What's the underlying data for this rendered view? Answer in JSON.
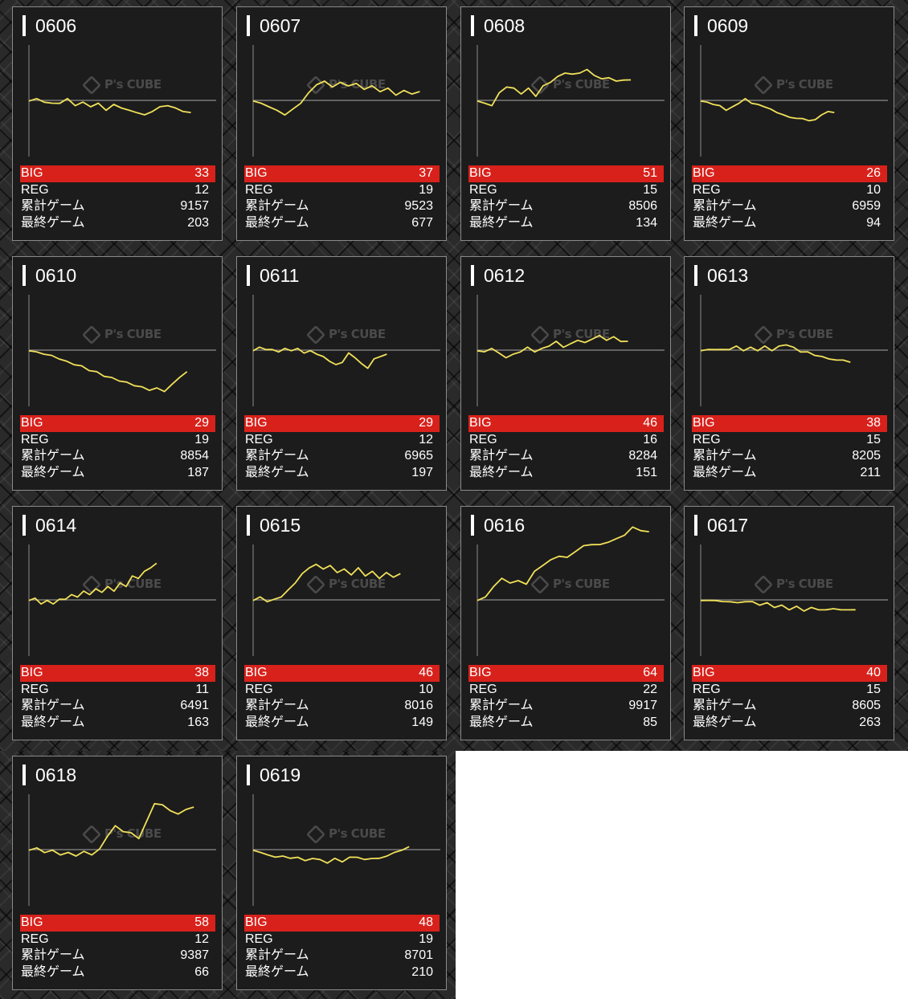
{
  "colors": {
    "card_bg": "#1c1c1c",
    "card_border": "#8a8a8a",
    "big_bar": "#d8211b",
    "graph_line": "#f0e05a",
    "baseline": "#8c8c8c",
    "text": "#ffffff"
  },
  "watermark": {
    "text": "P's CUBE",
    "icon": "cube-logo-icon"
  },
  "labels": {
    "big": "BIG",
    "reg": "REG",
    "total_games": "累計ゲーム",
    "last_games": "最終ゲーム"
  },
  "machines": [
    {
      "id": "0606",
      "big": "33",
      "reg": "12",
      "total_games": "9157",
      "last_games": "203",
      "trend": [
        0,
        1,
        -1,
        -3,
        -2,
        1,
        -4,
        -2,
        -5,
        -3,
        -8,
        -4,
        -6,
        -9,
        -10,
        -13,
        -9,
        -6,
        -4,
        -7,
        -9,
        -11
      ]
    },
    {
      "id": "0607",
      "big": "37",
      "reg": "19",
      "total_games": "9523",
      "last_games": "677",
      "trend": [
        0,
        -3,
        -5,
        -9,
        -12,
        -8,
        -2,
        6,
        14,
        16,
        12,
        15,
        13,
        14,
        10,
        12,
        8,
        10,
        5,
        8,
        6,
        7
      ]
    },
    {
      "id": "0608",
      "big": "51",
      "reg": "15",
      "total_games": "8506",
      "last_games": "134",
      "trend": [
        0,
        -3,
        -4,
        6,
        12,
        10,
        6,
        10,
        4,
        12,
        16,
        20,
        24,
        22,
        24,
        26,
        22,
        18,
        20,
        16,
        18,
        17
      ]
    },
    {
      "id": "0609",
      "big": "26",
      "reg": "10",
      "total_games": "6959",
      "last_games": "94",
      "trend": [
        0,
        -2,
        -3,
        -5,
        -8,
        -6,
        -2,
        1,
        -2,
        -4,
        -5,
        -8,
        -10,
        -13,
        -14,
        -16,
        -15,
        -18,
        -16,
        -13,
        -9,
        -11
      ]
    },
    {
      "id": "0610",
      "big": "29",
      "reg": "19",
      "total_games": "8854",
      "last_games": "187",
      "trend": [
        0,
        -2,
        -3,
        -5,
        -7,
        -10,
        -12,
        -14,
        -17,
        -19,
        -22,
        -24,
        -26,
        -28,
        -30,
        -32,
        -34,
        -33,
        -35,
        -30,
        -23,
        -19
      ]
    },
    {
      "id": "0611",
      "big": "29",
      "reg": "12",
      "total_games": "6965",
      "last_games": "197",
      "trend": [
        0,
        2,
        1,
        0,
        -1,
        1,
        0,
        1,
        -2,
        -1,
        -3,
        -6,
        -9,
        -13,
        -10,
        -3,
        -6,
        -12,
        -15,
        -8,
        -5,
        -4
      ]
    },
    {
      "id": "0612",
      "big": "46",
      "reg": "16",
      "total_games": "8284",
      "last_games": "151",
      "trend": [
        0,
        -2,
        2,
        -3,
        -6,
        -4,
        -1,
        2,
        -1,
        1,
        4,
        7,
        3,
        5,
        9,
        6,
        10,
        12,
        9,
        11,
        8,
        7
      ]
    },
    {
      "id": "0613",
      "big": "38",
      "reg": "15",
      "total_games": "8205",
      "last_games": "211",
      "trend": [
        0,
        0,
        1,
        0,
        1,
        3,
        0,
        2,
        0,
        3,
        0,
        3,
        5,
        2,
        -1,
        -2,
        -4,
        -6,
        -7,
        -9,
        -8,
        -11
      ]
    },
    {
      "id": "0614",
      "big": "38",
      "reg": "11",
      "total_games": "6491",
      "last_games": "163",
      "trend": [
        0,
        1,
        -3,
        -1,
        -3,
        0,
        1,
        4,
        3,
        7,
        5,
        9,
        7,
        11,
        8,
        14,
        12,
        20,
        19,
        24,
        28,
        31
      ]
    },
    {
      "id": "0615",
      "big": "46",
      "reg": "10",
      "total_games": "8016",
      "last_games": "149",
      "trend": [
        0,
        2,
        -1,
        0,
        3,
        8,
        15,
        22,
        28,
        30,
        27,
        29,
        24,
        26,
        22,
        27,
        21,
        24,
        19,
        23,
        20,
        22
      ]
    },
    {
      "id": "0616",
      "big": "64",
      "reg": "22",
      "total_games": "9917",
      "last_games": "85",
      "trend": [
        0,
        2,
        12,
        18,
        15,
        16,
        14,
        24,
        30,
        34,
        38,
        36,
        42,
        46,
        48,
        47,
        50,
        52,
        56,
        62,
        60,
        58
      ]
    },
    {
      "id": "0617",
      "big": "40",
      "reg": "15",
      "total_games": "8605",
      "last_games": "263",
      "trend": [
        0,
        -1,
        0,
        -2,
        -1,
        -3,
        -1,
        -2,
        -4,
        -3,
        -6,
        -5,
        -8,
        -6,
        -9,
        -7,
        -8,
        -9,
        -7,
        -9,
        -8,
        -9
      ]
    },
    {
      "id": "0618",
      "big": "58",
      "reg": "12",
      "total_games": "9387",
      "last_games": "66",
      "trend": [
        0,
        1,
        -2,
        -1,
        -4,
        -3,
        -5,
        -2,
        -4,
        0,
        12,
        20,
        16,
        14,
        10,
        24,
        40,
        38,
        34,
        30,
        35,
        36
      ]
    },
    {
      "id": "0619",
      "big": "48",
      "reg": "19",
      "total_games": "8701",
      "last_games": "210",
      "trend": [
        0,
        -3,
        -4,
        -7,
        -5,
        -8,
        -6,
        -10,
        -7,
        -9,
        -11,
        -8,
        -10,
        -7,
        -6,
        -9,
        -7,
        -8,
        -5,
        -3,
        0,
        2
      ]
    }
  ]
}
